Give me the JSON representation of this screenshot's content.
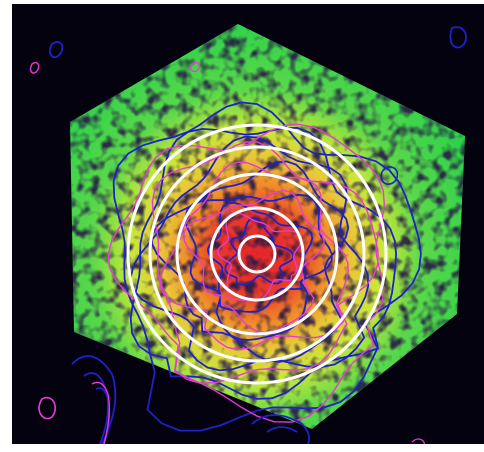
{
  "image": {
    "subject": "astronomical-false-color-map",
    "colors": {
      "background": "#05020f",
      "frame": "#ffffff",
      "emission_outer": "#2fd24a",
      "emission_mid": "#c8e83a",
      "emission_inner": "#f08a2a",
      "emission_core": "#e3252a",
      "contour_blue": "#1e22c8",
      "contour_magenta": "#e83ad6",
      "ring": "#ffffff"
    },
    "annuli_count": 5,
    "blue_contour_levels": 7,
    "magenta_contour_levels": 5
  }
}
